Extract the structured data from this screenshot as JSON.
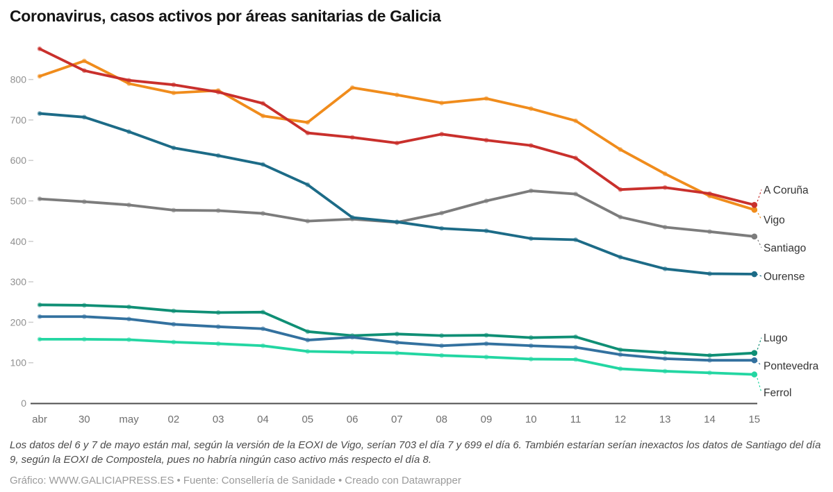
{
  "title": "Coronavirus, casos activos por áreas sanitarias de Galicia",
  "chart_data": {
    "type": "line",
    "title": "Coronavirus, casos activos por áreas sanitarias de Galicia",
    "x_labels": [
      "abr",
      "30",
      "may",
      "02",
      "03",
      "04",
      "05",
      "06",
      "07",
      "08",
      "09",
      "10",
      "11",
      "12",
      "13",
      "14",
      "15"
    ],
    "yticks": [
      0,
      100,
      200,
      300,
      400,
      500,
      600,
      700,
      800
    ],
    "ylim": [
      0,
      880
    ],
    "grid": false,
    "legend_position": "right-edge-direct-labels",
    "series": [
      {
        "name": "A Coruña",
        "color": "#c9302c",
        "label_offset_y": -22,
        "values": [
          876,
          822,
          798,
          787,
          769,
          741,
          668,
          657,
          643,
          665,
          650,
          637,
          606,
          528,
          533,
          518,
          490
        ]
      },
      {
        "name": "Vigo",
        "color": "#f08c1c",
        "label_offset_y": 14,
        "values": [
          808,
          846,
          790,
          767,
          773,
          710,
          694,
          780,
          762,
          742,
          753,
          728,
          698,
          627,
          567,
          512,
          478
        ]
      },
      {
        "name": "Santiago",
        "color": "#7c7c7c",
        "label_offset_y": 16,
        "values": [
          505,
          498,
          490,
          477,
          476,
          469,
          450,
          455,
          447,
          470,
          500,
          525,
          517,
          460,
          435,
          424,
          412
        ]
      },
      {
        "name": "Ourense",
        "color": "#1c6b87",
        "label_offset_y": 3,
        "values": [
          716,
          707,
          671,
          631,
          612,
          590,
          540,
          459,
          448,
          432,
          426,
          407,
          404,
          361,
          332,
          320,
          319
        ]
      },
      {
        "name": "Lugo",
        "color": "#0f8f75",
        "label_offset_y": -22,
        "values": [
          243,
          242,
          238,
          228,
          224,
          225,
          177,
          167,
          171,
          167,
          168,
          162,
          164,
          132,
          125,
          118,
          124
        ]
      },
      {
        "name": "Pontevedra",
        "color": "#33719f",
        "label_offset_y": 8,
        "values": [
          214,
          214,
          208,
          195,
          189,
          184,
          156,
          163,
          150,
          142,
          147,
          142,
          138,
          120,
          110,
          106,
          106
        ]
      },
      {
        "name": "Ferrol",
        "color": "#23d6a2",
        "label_offset_y": 26,
        "values": [
          158,
          158,
          157,
          151,
          147,
          142,
          128,
          126,
          124,
          118,
          114,
          109,
          108,
          85,
          79,
          75,
          71
        ]
      }
    ]
  },
  "note": {
    "text": "Los datos del 6 y 7 de mayo están mal, según la versión de la EOXI de Vigo, serían 703 el día 7 y 699 el día 6. También estarían serían inexactos los datos de Santiago del día 9, según la EOXI de Compostela, pues no habría ningún caso activo más respecto el día 8."
  },
  "footer": {
    "grafico_label": "Gráfico:",
    "grafico_value": "WWW.GALICIAPRESS.ES",
    "separator1": "•",
    "fuente_label": "Fuente:",
    "fuente_value": "Consellería de Sanidade",
    "separator2": "•",
    "credit": "Creado con Datawrapper"
  }
}
